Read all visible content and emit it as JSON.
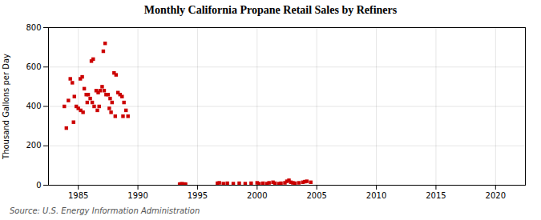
{
  "chart_data": {
    "type": "scatter",
    "title": "Monthly California Propane Retail Sales by Refiners",
    "ylabel": "Thousand Gallons per Day",
    "source": "Source: U.S. Energy Information Administration",
    "color": "#cc0000",
    "marker": "square",
    "grid": true,
    "xlim": [
      1982.5,
      2022.5
    ],
    "ylim": [
      0,
      800
    ],
    "xticks": [
      1985,
      1990,
      1995,
      2000,
      2005,
      2010,
      2015,
      2020
    ],
    "yticks": [
      0,
      200,
      400,
      600,
      800
    ],
    "x": [
      1983.83,
      1984.0,
      1984.17,
      1984.33,
      1984.5,
      1984.67,
      1984.83,
      1985.0,
      1985.17,
      1985.33,
      1985.5,
      1985.67,
      1985.83,
      1986.0,
      1986.17,
      1986.33,
      1986.5,
      1986.67,
      1986.83,
      1986.1,
      1986.25,
      1987.0,
      1987.17,
      1987.33,
      1987.5,
      1987.67,
      1987.83,
      1987.1,
      1987.25,
      1988.0,
      1988.17,
      1988.33,
      1988.5,
      1988.67,
      1988.83,
      1989.0,
      1989.17,
      1985.2,
      1985.4,
      1986.6,
      1987.6,
      1988.1,
      1984.6,
      1985.75,
      1986.75,
      1987.75,
      1988.75,
      1993.5,
      1993.58,
      1993.67,
      1993.75,
      1993.83,
      1993.92,
      1994.0,
      1996.67,
      1996.83,
      1997.17,
      1997.5,
      1998.0,
      1998.5,
      1999.0,
      1999.5,
      2000.0,
      2000.17,
      2000.5,
      2000.83,
      2001.0,
      2001.33,
      2001.5,
      2001.83,
      2002.0,
      2002.33,
      2002.5,
      2002.67,
      2002.83,
      2003.0,
      2003.17,
      2003.5,
      2003.83,
      2004.0,
      2004.17,
      2004.5
    ],
    "values": [
      400,
      290,
      430,
      540,
      520,
      450,
      400,
      390,
      540,
      550,
      490,
      460,
      460,
      440,
      420,
      400,
      480,
      470,
      480,
      630,
      640,
      500,
      480,
      460,
      460,
      440,
      420,
      680,
      720,
      570,
      560,
      470,
      460,
      450,
      420,
      380,
      350,
      380,
      370,
      380,
      390,
      350,
      320,
      420,
      400,
      370,
      350,
      5,
      6,
      7,
      6,
      5,
      6,
      5,
      10,
      12,
      8,
      10,
      8,
      10,
      8,
      10,
      12,
      8,
      10,
      8,
      12,
      15,
      10,
      8,
      10,
      12,
      20,
      25,
      15,
      12,
      10,
      12,
      15,
      18,
      20,
      15
    ]
  }
}
